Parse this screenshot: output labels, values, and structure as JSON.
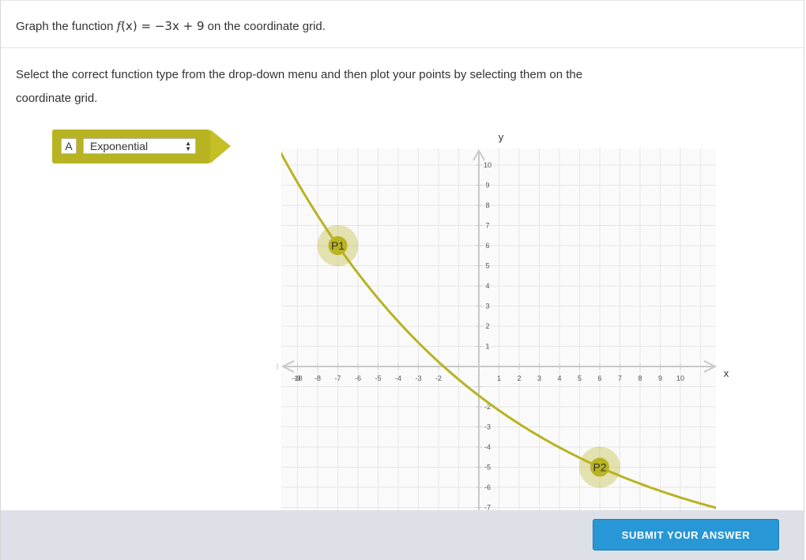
{
  "prompt": {
    "prefix": "Graph the function ",
    "func_name": "f",
    "func_var": "(x)",
    "equals": " = ",
    "expression": "−3x + 9",
    "suffix": " on the coordinate grid."
  },
  "instructions": "Select the correct function type from the drop-down menu and then plot your points by selecting them on the coordinate grid.",
  "dropdown": {
    "letter": "A",
    "selected": "Exponential",
    "caret_up": "▲",
    "caret_down": "▼",
    "accent_color": "#b8b321"
  },
  "graph": {
    "x_axis_label": "x",
    "y_axis_label": "y",
    "x_ticks": [
      -10,
      -9,
      -8,
      -7,
      -6,
      -5,
      -4,
      -3,
      -2,
      1,
      2,
      3,
      4,
      5,
      6,
      7,
      8,
      9,
      10
    ],
    "y_ticks_pos": [
      10,
      9,
      8,
      7,
      6,
      5,
      4,
      3,
      2,
      1
    ],
    "y_ticks_neg": [
      -2,
      -3,
      -4,
      -5,
      -6,
      -7
    ],
    "curve_color": "#b8b321",
    "points": [
      {
        "label": "P1",
        "x": -7,
        "y": 6
      },
      {
        "label": "P2",
        "x": 6,
        "y": -5
      }
    ]
  },
  "footer": {
    "submit_label": "SUBMIT YOUR ANSWER",
    "submit_color": "#2897d6"
  }
}
